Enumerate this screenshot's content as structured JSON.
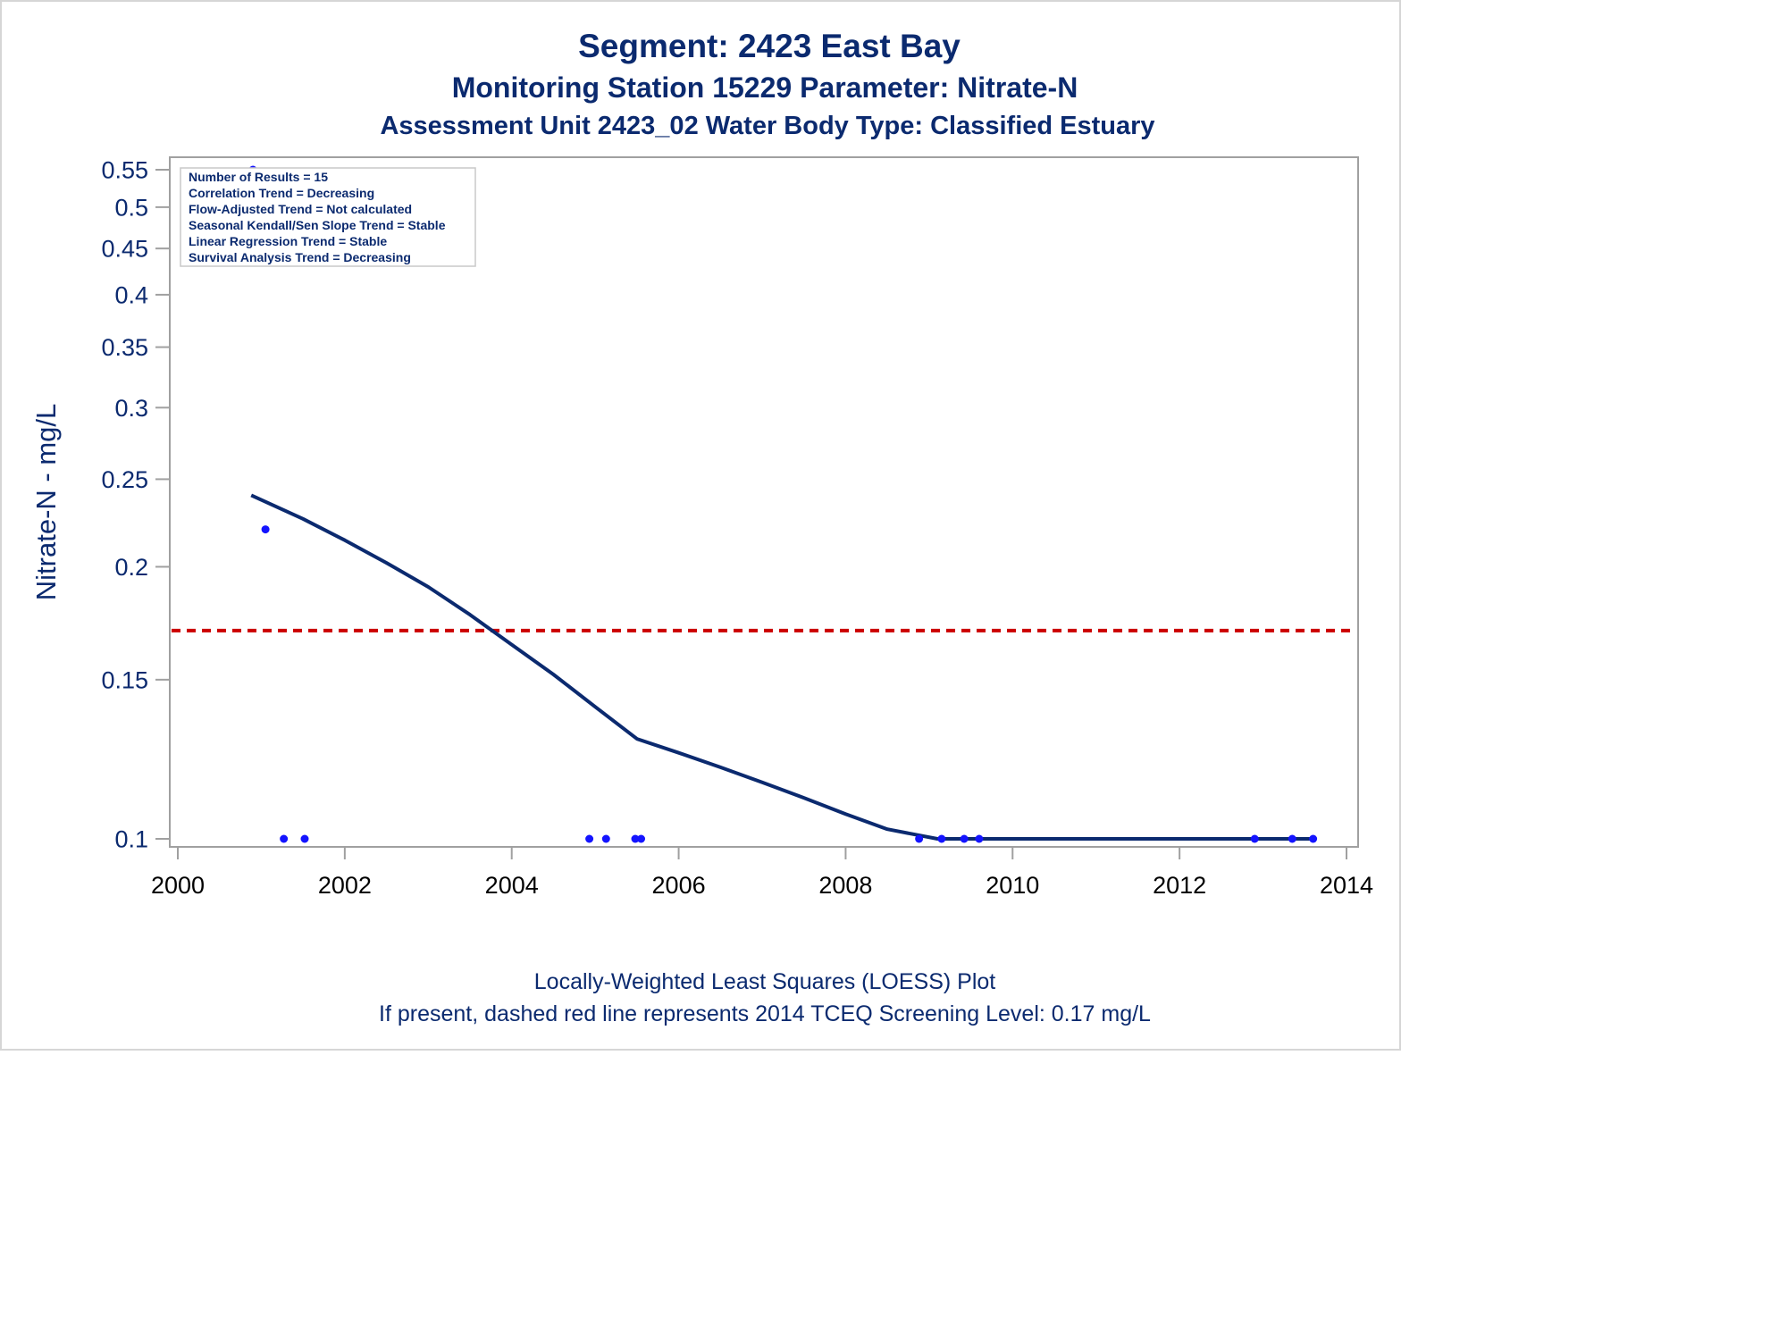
{
  "chart_data": {
    "type": "scatter",
    "title": "Segment: 2423  East Bay",
    "subtitle_1": "Monitoring Station 15229 Parameter: Nitrate-N",
    "subtitle_2": "Assessment Unit 2423_02   Water Body Type: Classified Estuary",
    "ylabel": "Nitrate-N - mg/L",
    "xlabel": "",
    "y_scale": "log",
    "x_ticks": [
      "2000",
      "2002",
      "2004",
      "2006",
      "2008",
      "2010",
      "2012",
      "2014"
    ],
    "y_ticks": [
      "0.1",
      "0.15",
      "0.2",
      "0.25",
      "0.3",
      "0.35",
      "0.4",
      "0.45",
      "0.5",
      "0.55"
    ],
    "xlim": [
      2000,
      2014
    ],
    "ylim": [
      0.1,
      0.55
    ],
    "points": [
      {
        "x": 2000.9,
        "y": 0.55
      },
      {
        "x": 2001.05,
        "y": 0.22
      },
      {
        "x": 2001.27,
        "y": 0.1
      },
      {
        "x": 2001.52,
        "y": 0.1
      },
      {
        "x": 2004.93,
        "y": 0.1
      },
      {
        "x": 2005.13,
        "y": 0.1
      },
      {
        "x": 2005.48,
        "y": 0.1
      },
      {
        "x": 2005.55,
        "y": 0.1
      },
      {
        "x": 2008.88,
        "y": 0.1
      },
      {
        "x": 2009.15,
        "y": 0.1
      },
      {
        "x": 2009.42,
        "y": 0.1
      },
      {
        "x": 2009.6,
        "y": 0.1
      },
      {
        "x": 2012.9,
        "y": 0.1
      },
      {
        "x": 2013.35,
        "y": 0.1
      },
      {
        "x": 2013.6,
        "y": 0.1
      }
    ],
    "loess_line": [
      {
        "x": 2000.88,
        "y": 0.24
      },
      {
        "x": 2001.5,
        "y": 0.226
      },
      {
        "x": 2002.0,
        "y": 0.214
      },
      {
        "x": 2002.5,
        "y": 0.202
      },
      {
        "x": 2003.0,
        "y": 0.19
      },
      {
        "x": 2003.5,
        "y": 0.177
      },
      {
        "x": 2004.0,
        "y": 0.164
      },
      {
        "x": 2004.5,
        "y": 0.152
      },
      {
        "x": 2005.0,
        "y": 0.14
      },
      {
        "x": 2005.5,
        "y": 0.129
      },
      {
        "x": 2006.0,
        "y": 0.1245
      },
      {
        "x": 2006.5,
        "y": 0.12
      },
      {
        "x": 2007.0,
        "y": 0.1155
      },
      {
        "x": 2007.5,
        "y": 0.111
      },
      {
        "x": 2008.0,
        "y": 0.1065
      },
      {
        "x": 2008.5,
        "y": 0.1025
      },
      {
        "x": 2009.1,
        "y": 0.1
      },
      {
        "x": 2010.0,
        "y": 0.1
      },
      {
        "x": 2011.0,
        "y": 0.1
      },
      {
        "x": 2012.0,
        "y": 0.1
      },
      {
        "x": 2013.0,
        "y": 0.1
      },
      {
        "x": 2013.6,
        "y": 0.1
      }
    ],
    "screening_level": 0.17,
    "colors": {
      "text": "#0b2a6f",
      "points": "#1414ff",
      "loess": "#0b2a6f",
      "screening": "#cc0000",
      "frame": "#a0a0a0"
    },
    "stats_box": [
      "Number of Results = 15",
      "Correlation Trend = Decreasing",
      "Flow-Adjusted Trend = Not calculated",
      "Seasonal Kendall/Sen Slope Trend = Stable",
      "Linear Regression Trend = Stable",
      "Survival Analysis Trend = Decreasing"
    ],
    "legend_placement": "top-left",
    "grid": false
  },
  "footer": {
    "line1": "Locally-Weighted Least Squares (LOESS) Plot",
    "line2": "If present, dashed red line represents 2014 TCEQ Screening Level: 0.17 mg/L"
  }
}
